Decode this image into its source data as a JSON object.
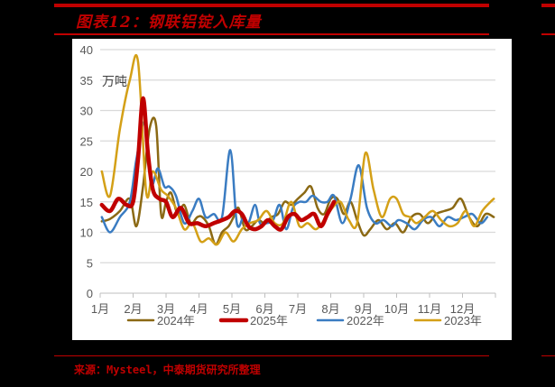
{
  "header": {
    "title": "图表12：钢联铝锭入库量"
  },
  "footer": {
    "source": "来源：Mysteel，中泰期货研究所整理"
  },
  "chart_data": {
    "type": "line",
    "title": "钢联铝锭入库量",
    "unit_label": "万吨",
    "xlabel": "",
    "ylabel": "万吨",
    "ylim": [
      0,
      40
    ],
    "yticks": [
      0,
      5,
      10,
      15,
      20,
      25,
      30,
      35,
      40
    ],
    "categories": [
      "1月",
      "2月",
      "3月",
      "4月",
      "5月",
      "6月",
      "7月",
      "8月",
      "9月",
      "10月",
      "11月",
      "12月"
    ],
    "grid": true,
    "legend_position": "bottom",
    "series": [
      {
        "name": "2024年",
        "color": "#8B6914",
        "width": 2.5,
        "x": [
          0.05,
          0.3,
          0.6,
          0.9,
          1.1,
          1.3,
          1.5,
          1.7,
          1.85,
          2.0,
          2.15,
          2.35,
          2.55,
          2.75,
          2.95,
          3.1,
          3.3,
          3.5,
          3.7,
          3.9,
          4.05,
          4.2,
          4.4,
          4.6,
          4.8,
          5.0,
          5.2,
          5.4,
          5.6,
          5.8,
          6.0,
          6.2,
          6.4,
          6.6,
          6.8,
          7.0,
          7.2,
          7.4,
          7.6,
          7.8,
          8.0,
          8.2,
          8.45,
          8.7,
          8.95,
          9.2,
          9.45,
          9.7,
          9.95,
          10.2,
          10.45,
          10.7,
          10.95,
          11.2,
          11.45,
          11.7,
          11.95
        ],
        "values": [
          11.8,
          12.2,
          13.5,
          15.5,
          11.0,
          17.5,
          27.0,
          27.5,
          13.0,
          15.0,
          16.5,
          13.0,
          14.5,
          11.5,
          12.5,
          12.5,
          11.0,
          8.0,
          10.0,
          11.0,
          12.5,
          14.0,
          10.5,
          11.0,
          12.0,
          11.5,
          12.5,
          13.0,
          15.0,
          14.5,
          15.5,
          16.5,
          17.5,
          14.0,
          13.0,
          15.5,
          15.5,
          13.0,
          15.0,
          12.0,
          9.5,
          10.5,
          12.0,
          10.5,
          11.5,
          10.0,
          12.5,
          13.0,
          11.5,
          13.0,
          13.5,
          14.0,
          15.5,
          12.5,
          11.0,
          13.0,
          12.5
        ]
      },
      {
        "name": "2025年",
        "color": "#C00000",
        "width": 4.5,
        "x": [
          0.05,
          0.3,
          0.55,
          0.8,
          1.0,
          1.15,
          1.3,
          1.45,
          1.6,
          1.8,
          2.0,
          2.2,
          2.45,
          2.7,
          2.95,
          3.2,
          3.45,
          3.7,
          3.9,
          4.1,
          4.3,
          4.5,
          4.7,
          4.9,
          5.1,
          5.3,
          5.5,
          5.7,
          5.9,
          6.1,
          6.3,
          6.5,
          6.7,
          6.9,
          7.1
        ],
        "values": [
          14.5,
          13.5,
          15.5,
          14.5,
          15.0,
          22.0,
          32.0,
          23.0,
          17.0,
          15.5,
          15.0,
          12.5,
          14.0,
          11.5,
          11.5,
          11.0,
          11.5,
          12.0,
          12.5,
          13.5,
          13.0,
          11.0,
          10.5,
          11.0,
          12.0,
          11.0,
          10.5,
          12.5,
          13.0,
          12.0,
          12.5,
          13.0,
          11.0,
          13.0,
          15.0
        ]
      },
      {
        "name": "2022年",
        "color": "#3A7CC2",
        "width": 2.5,
        "x": [
          0.05,
          0.3,
          0.6,
          0.9,
          1.1,
          1.35,
          1.55,
          1.75,
          1.95,
          2.1,
          2.3,
          2.55,
          2.8,
          3.0,
          3.2,
          3.45,
          3.7,
          3.95,
          4.15,
          4.35,
          4.5,
          4.7,
          4.85,
          5.05,
          5.25,
          5.45,
          5.65,
          5.85,
          6.05,
          6.25,
          6.45,
          6.7,
          6.9,
          7.1,
          7.35,
          7.6,
          7.85,
          8.1,
          8.35,
          8.6,
          8.85,
          9.05,
          9.3,
          9.55,
          9.8,
          10.05,
          10.3,
          10.55,
          10.8,
          11.05,
          11.3,
          11.55,
          11.75
        ],
        "values": [
          12.5,
          10.0,
          12.5,
          15.0,
          22.0,
          28.0,
          18.0,
          20.5,
          17.5,
          17.5,
          16.0,
          11.5,
          13.5,
          15.5,
          12.5,
          13.0,
          12.5,
          23.5,
          11.5,
          12.5,
          11.5,
          14.5,
          11.5,
          11.5,
          12.0,
          14.5,
          10.5,
          14.0,
          15.0,
          15.0,
          16.0,
          15.0,
          15.0,
          16.0,
          11.5,
          15.5,
          21.0,
          14.0,
          11.5,
          12.0,
          11.0,
          12.0,
          11.5,
          10.5,
          12.0,
          12.5,
          11.0,
          12.5,
          12.0,
          12.5,
          13.0,
          11.5,
          12.5
        ]
      },
      {
        "name": "2023年",
        "color": "#D4A017",
        "width": 2.5,
        "x": [
          0.05,
          0.3,
          0.6,
          0.9,
          1.15,
          1.4,
          1.6,
          1.85,
          2.05,
          2.3,
          2.55,
          2.8,
          3.05,
          3.3,
          3.55,
          3.8,
          4.05,
          4.3,
          4.55,
          4.8,
          5.05,
          5.3,
          5.55,
          5.8,
          6.05,
          6.3,
          6.55,
          6.8,
          7.05,
          7.3,
          7.55,
          7.8,
          8.05,
          8.3,
          8.55,
          8.8,
          9.0,
          9.2,
          9.4,
          9.6,
          9.85,
          10.1,
          10.35,
          10.6,
          10.85,
          11.1,
          11.35,
          11.6,
          11.85,
          11.95
        ],
        "values": [
          20.0,
          16.0,
          27.0,
          35.0,
          38.0,
          16.5,
          20.0,
          17.0,
          16.0,
          14.0,
          10.5,
          11.5,
          8.5,
          9.0,
          8.0,
          10.0,
          8.5,
          10.5,
          11.5,
          12.0,
          13.5,
          11.5,
          11.5,
          15.0,
          11.0,
          11.5,
          10.5,
          12.0,
          14.0,
          15.0,
          12.0,
          11.5,
          23.0,
          17.0,
          12.5,
          15.5,
          15.5,
          13.0,
          12.5,
          11.5,
          12.5,
          13.5,
          12.0,
          11.0,
          11.5,
          13.5,
          11.0,
          13.5,
          15.0,
          15.5
        ]
      }
    ]
  }
}
